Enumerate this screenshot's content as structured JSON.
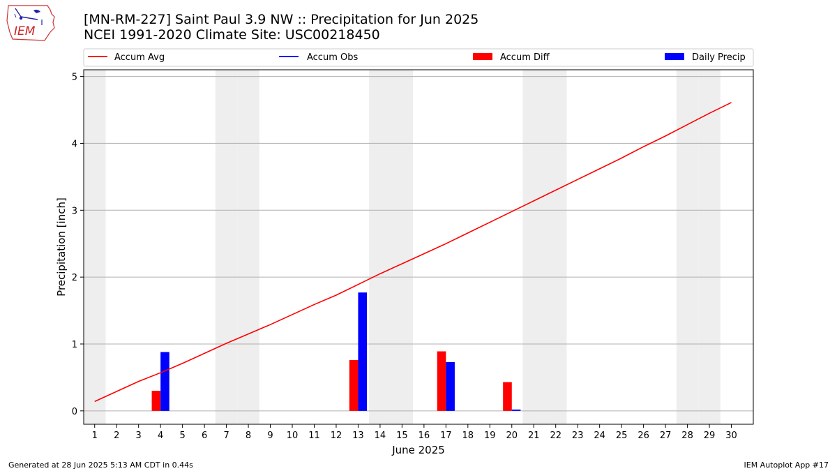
{
  "header": {
    "title": "[MN-RM-227] Saint Paul 3.9 NW :: Precipitation for Jun 2025",
    "subtitle": "NCEI 1991-2020 Climate Site: USC00218450"
  },
  "logo": {
    "text": "IEM",
    "icon": "iem-logo-icon"
  },
  "footer": {
    "generated": "Generated at 28 Jun 2025 5:13 AM CDT in 0.44s",
    "app": "IEM Autoplot App #17"
  },
  "colors": {
    "accum_avg": "#ff0000",
    "accum_obs": "#0000ff",
    "accum_diff": "#ff0000",
    "daily_precip": "#0000ff",
    "weekend_band": "#eeeeee",
    "grid": "#b0b0b0"
  },
  "chart_data": {
    "type": "bar",
    "xlabel": "June 2025",
    "ylabel": "Precipitation [inch]",
    "xlim": [
      0.5,
      31
    ],
    "ylim": [
      -0.2,
      5.1
    ],
    "yticks": [
      0,
      1,
      2,
      3,
      4,
      5
    ],
    "days": [
      1,
      2,
      3,
      4,
      5,
      6,
      7,
      8,
      9,
      10,
      11,
      12,
      13,
      14,
      15,
      16,
      17,
      18,
      19,
      20,
      21,
      22,
      23,
      24,
      25,
      26,
      27,
      28,
      29,
      30
    ],
    "weekend_days": [
      1,
      7,
      8,
      14,
      15,
      21,
      22,
      28,
      29
    ],
    "grid": "horizontal",
    "legend_position": "top",
    "legend": [
      {
        "label": "Accum Avg",
        "kind": "line",
        "color": "#ff0000"
      },
      {
        "label": "Accum Obs",
        "kind": "line",
        "color": "#0000ff"
      },
      {
        "label": "Accum Diff",
        "kind": "bar",
        "color": "#ff0000"
      },
      {
        "label": "Daily Precip",
        "kind": "bar",
        "color": "#0000ff"
      }
    ],
    "series": [
      {
        "name": "Accum Avg",
        "type": "line",
        "x": [
          1,
          2,
          3,
          4,
          5,
          6,
          7,
          8,
          9,
          10,
          11,
          12,
          13,
          14,
          15,
          16,
          17,
          18,
          19,
          20,
          21,
          22,
          23,
          24,
          25,
          26,
          27,
          28,
          29,
          30
        ],
        "values": [
          0.14,
          0.29,
          0.44,
          0.57,
          0.71,
          0.86,
          1.01,
          1.15,
          1.29,
          1.44,
          1.59,
          1.73,
          1.89,
          2.05,
          2.2,
          2.35,
          2.5,
          2.66,
          2.82,
          2.98,
          3.14,
          3.3,
          3.46,
          3.62,
          3.78,
          3.95,
          4.11,
          4.28,
          4.45,
          4.61
        ]
      },
      {
        "name": "Accum Diff",
        "type": "bar",
        "x": [
          4,
          13,
          17,
          20
        ],
        "values": [
          0.3,
          0.76,
          0.89,
          0.43
        ]
      },
      {
        "name": "Daily Precip",
        "type": "bar",
        "x": [
          4,
          13,
          17,
          20
        ],
        "values": [
          0.88,
          1.77,
          0.73,
          0.02
        ]
      }
    ]
  }
}
